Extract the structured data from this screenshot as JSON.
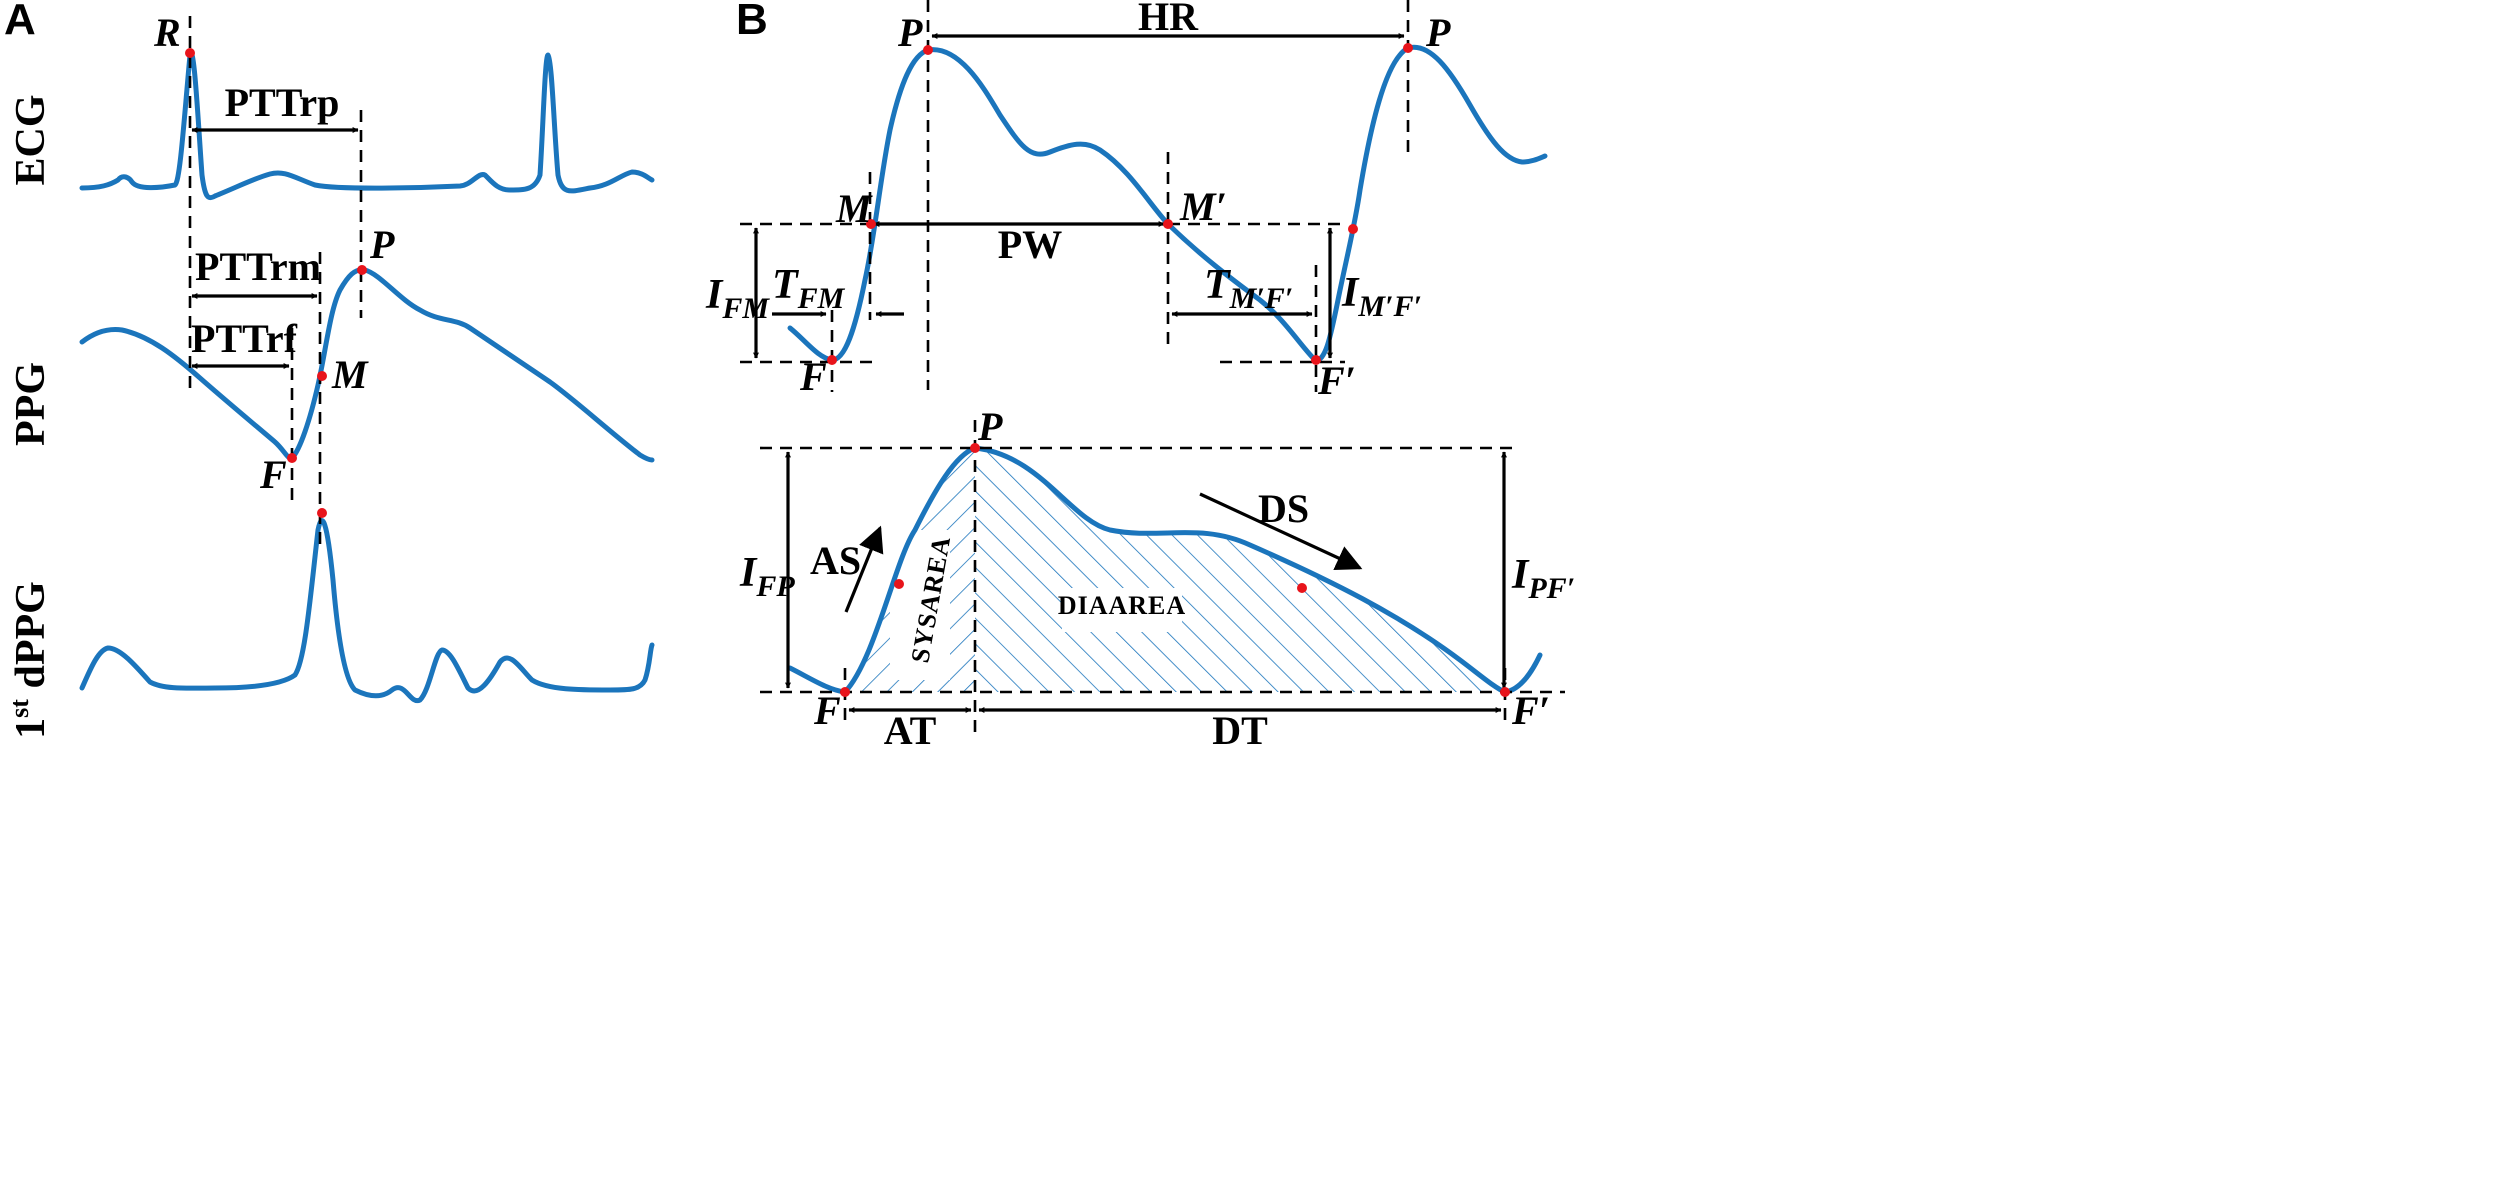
{
  "panel_a": {
    "letter": "A",
    "signals": {
      "ecg": "ECG",
      "ppg": "PPG",
      "dppg_prefix": "1",
      "dppg_sup": "st",
      "dppg_suffix": " dPPG"
    },
    "points": {
      "r": "R",
      "p": "P",
      "m": "M",
      "f": "F"
    },
    "intervals": {
      "pttrp": "PTTrp",
      "pttrm": "PTTrm",
      "pttrf": "PTTrf"
    }
  },
  "panel_b": {
    "letter": "B",
    "points": {
      "p": "P",
      "m": "M",
      "f": "F",
      "m_prime": "M′",
      "f_prime": "F′"
    },
    "intervals": {
      "hr": "HR",
      "pw": "PW",
      "at": "AT",
      "dt": "DT",
      "as": "AS",
      "ds": "DS"
    },
    "symbols": {
      "i": "I",
      "t": "T",
      "fm_sub": "FM",
      "mf_sub": "M′F′",
      "fp_sub": "FP",
      "pf_sub": "PF′"
    },
    "areas": {
      "sys": "SYSAREA",
      "dia": "DIAAREA"
    }
  },
  "colors": {
    "signal": "#1b75bc",
    "marker": "#e8141b",
    "annotation": "#000000"
  }
}
